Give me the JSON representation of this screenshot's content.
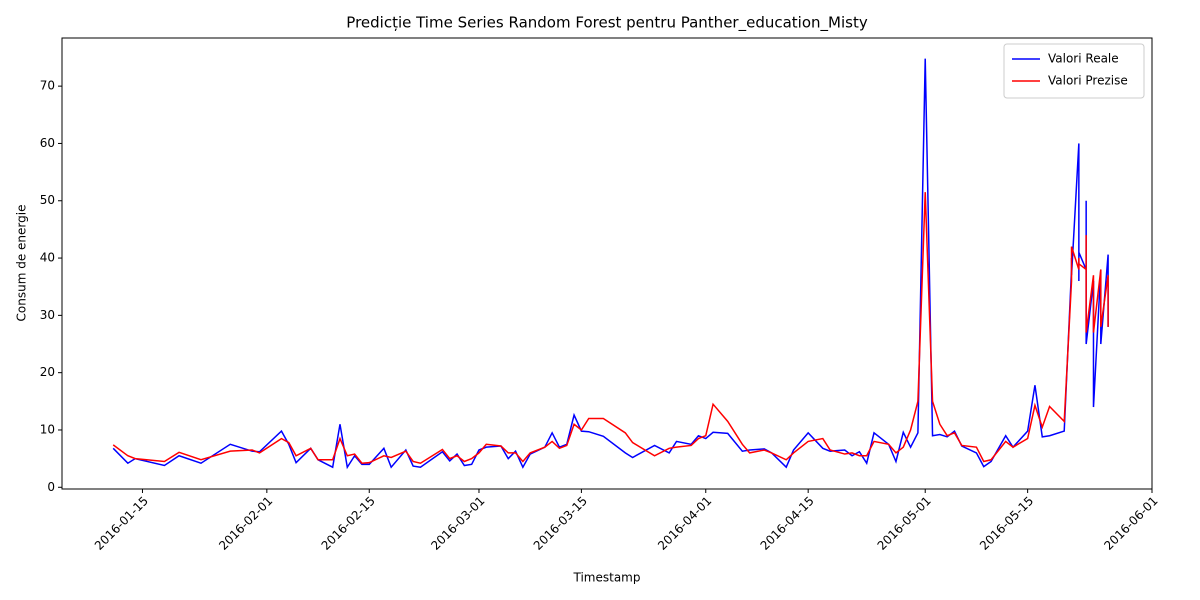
{
  "chart_data": {
    "type": "line",
    "title": "Predicție Time Series Random Forest pentru Panther_education_Misty",
    "x_label": "Timestamp",
    "y_label": "Consum de energie",
    "x": [
      "2016-01-11",
      "2016-01-13",
      "2016-01-14",
      "2016-01-18",
      "2016-01-20",
      "2016-01-23",
      "2016-01-27",
      "2016-01-30",
      "2016-01-31",
      "2016-02-03",
      "2016-02-04",
      "2016-02-05",
      "2016-02-07",
      "2016-02-08",
      "2016-02-10",
      "2016-02-11",
      "2016-02-12",
      "2016-02-13",
      "2016-02-14",
      "2016-02-15",
      "2016-02-17",
      "2016-02-18",
      "2016-02-20",
      "2016-02-21",
      "2016-02-22",
      "2016-02-25",
      "2016-02-26",
      "2016-02-27",
      "2016-02-28",
      "2016-02-29",
      "2016-03-01",
      "2016-03-02",
      "2016-03-04",
      "2016-03-05",
      "2016-03-06",
      "2016-03-07",
      "2016-03-08",
      "2016-03-10",
      "2016-03-11",
      "2016-03-12",
      "2016-03-13",
      "2016-03-14",
      "2016-03-15",
      "2016-03-16",
      "2016-03-18",
      "2016-03-21",
      "2016-03-22",
      "2016-03-25",
      "2016-03-27",
      "2016-03-28",
      "2016-03-30",
      "2016-03-31",
      "2016-04-01",
      "2016-04-02",
      "2016-04-04",
      "2016-04-06",
      "2016-04-07",
      "2016-04-09",
      "2016-04-10",
      "2016-04-12",
      "2016-04-13",
      "2016-04-15",
      "2016-04-17",
      "2016-04-18",
      "2016-04-20",
      "2016-04-21",
      "2016-04-22",
      "2016-04-23",
      "2016-04-24",
      "2016-04-26",
      "2016-04-27",
      "2016-04-28",
      "2016-04-29",
      "2016-04-30",
      "2016-05-01",
      "2016-05-02",
      "2016-05-03",
      "2016-05-04",
      "2016-05-05",
      "2016-05-06",
      "2016-05-08",
      "2016-05-09",
      "2016-05-10",
      "2016-05-12",
      "2016-05-13",
      "2016-05-15",
      "2016-05-16",
      "2016-05-17",
      "2016-05-18",
      "2016-05-20",
      "2016-05-21",
      "2016-05-21",
      "2016-05-21",
      "2016-05-22",
      "2016-05-22",
      "2016-05-22",
      "2016-05-23",
      "2016-05-23",
      "2016-05-23",
      "2016-05-24",
      "2016-05-24",
      "2016-05-24",
      "2016-05-24",
      "2016-05-25",
      "2016-05-25",
      "2016-05-26",
      "2016-05-26"
    ],
    "series": [
      {
        "name": "Valori Reale",
        "color": "#0000ff",
        "values": [
          6.8,
          4.2,
          5.0,
          3.8,
          5.5,
          4.2,
          7.5,
          6.3,
          6.2,
          9.8,
          7.5,
          4.3,
          6.8,
          4.8,
          3.5,
          11.0,
          3.5,
          5.5,
          4.0,
          4.0,
          6.8,
          3.5,
          6.5,
          3.7,
          3.5,
          6.2,
          4.6,
          5.8,
          3.8,
          4.0,
          6.5,
          7.0,
          7.2,
          5.0,
          6.3,
          3.5,
          5.8,
          7.0,
          9.5,
          7.0,
          7.5,
          12.6,
          9.8,
          9.7,
          8.9,
          6.0,
          5.2,
          7.3,
          6.0,
          8.0,
          7.5,
          9.0,
          8.5,
          9.6,
          9.4,
          6.3,
          6.5,
          6.7,
          6.0,
          3.5,
          6.5,
          9.5,
          6.8,
          6.3,
          6.5,
          5.5,
          6.2,
          4.2,
          9.5,
          7.5,
          4.5,
          9.6,
          7.0,
          9.5,
          74.8,
          9.0,
          9.2,
          8.8,
          9.8,
          7.2,
          6.0,
          3.6,
          4.5,
          9.0,
          7.0,
          9.8,
          17.8,
          8.8,
          9.0,
          9.8,
          38,
          40,
          37,
          60,
          36,
          41,
          38,
          50,
          25,
          36,
          24,
          36,
          14,
          38,
          25,
          40.6,
          28
        ]
      },
      {
        "name": "Valori Prezise",
        "color": "#ff0000",
        "values": [
          7.4,
          5.5,
          5.0,
          4.5,
          6.1,
          4.8,
          6.3,
          6.5,
          6.0,
          8.5,
          7.8,
          5.5,
          6.8,
          4.8,
          4.8,
          8.5,
          5.5,
          5.8,
          4.2,
          4.3,
          5.5,
          5.2,
          6.3,
          4.5,
          4.2,
          6.6,
          5.0,
          5.5,
          4.5,
          5.0,
          6.0,
          7.5,
          7.2,
          6.0,
          6.0,
          4.5,
          6.0,
          7.0,
          8.0,
          6.8,
          7.3,
          11.0,
          10.0,
          12.0,
          12.0,
          9.5,
          7.8,
          5.5,
          6.8,
          7.0,
          7.3,
          8.5,
          9.0,
          14.5,
          11.5,
          7.5,
          6.0,
          6.5,
          6.0,
          4.8,
          6.0,
          8.0,
          8.5,
          6.5,
          5.8,
          6.0,
          5.5,
          5.5,
          8.0,
          7.5,
          6.0,
          7.0,
          10.0,
          15.0,
          51.5,
          15.0,
          11.0,
          9.0,
          9.5,
          7.3,
          7.0,
          4.5,
          4.8,
          8.0,
          7.0,
          8.5,
          14.3,
          10.5,
          14.1,
          11.5,
          36,
          39,
          42,
          38,
          40,
          39,
          38,
          44,
          27,
          37,
          33,
          35,
          27,
          38,
          28,
          37,
          28
        ]
      }
    ],
    "xlim": [
      "2016-01-04",
      "2016-06-01"
    ],
    "xticks": [
      "2016-01-15",
      "2016-02-01",
      "2016-02-15",
      "2016-03-01",
      "2016-03-15",
      "2016-04-01",
      "2016-04-15",
      "2016-05-01",
      "2016-05-15",
      "2016-06-01"
    ],
    "ylim": [
      -0.3,
      78.4
    ],
    "yticks": [
      0,
      10,
      20,
      30,
      40,
      50,
      60,
      70
    ],
    "legend": "upper right"
  }
}
